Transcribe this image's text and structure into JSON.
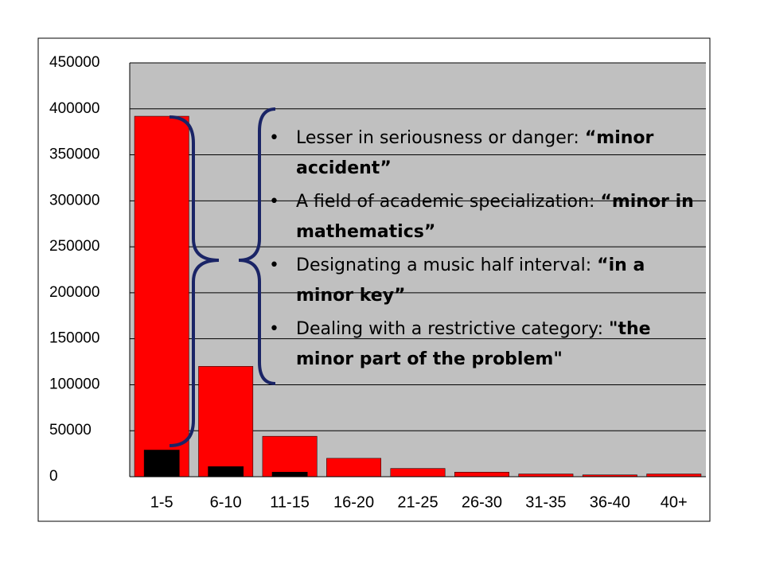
{
  "chart_data": {
    "type": "bar",
    "categories": [
      "1-5",
      "6-10",
      "11-15",
      "16-20",
      "21-25",
      "26-30",
      "31-35",
      "36-40",
      "40+"
    ],
    "series": [
      {
        "color": "#ff0000",
        "values": [
          392000,
          120000,
          44000,
          20000,
          9000,
          5000,
          3000,
          2000,
          3000
        ]
      },
      {
        "color": "#000000",
        "values": [
          29000,
          11000,
          5000,
          0,
          0,
          0,
          0,
          0,
          0
        ]
      }
    ],
    "ylim": [
      0,
      450000
    ],
    "yticks": [
      0,
      50000,
      100000,
      150000,
      200000,
      250000,
      300000,
      350000,
      400000,
      450000
    ],
    "grid": true,
    "annotations": [
      {
        "plain": "Lesser in seriousness or danger: ",
        "bold": "“minor accident”"
      },
      {
        "plain": "A field of academic specialization: ",
        "bold": "“minor in mathematics”"
      },
      {
        "plain": "Designating a music half interval: ",
        "bold": "“in a minor key”"
      },
      {
        "plain": "Dealing with a restrictive category: ",
        "bold": "\"the minor part of the problem\""
      }
    ]
  }
}
